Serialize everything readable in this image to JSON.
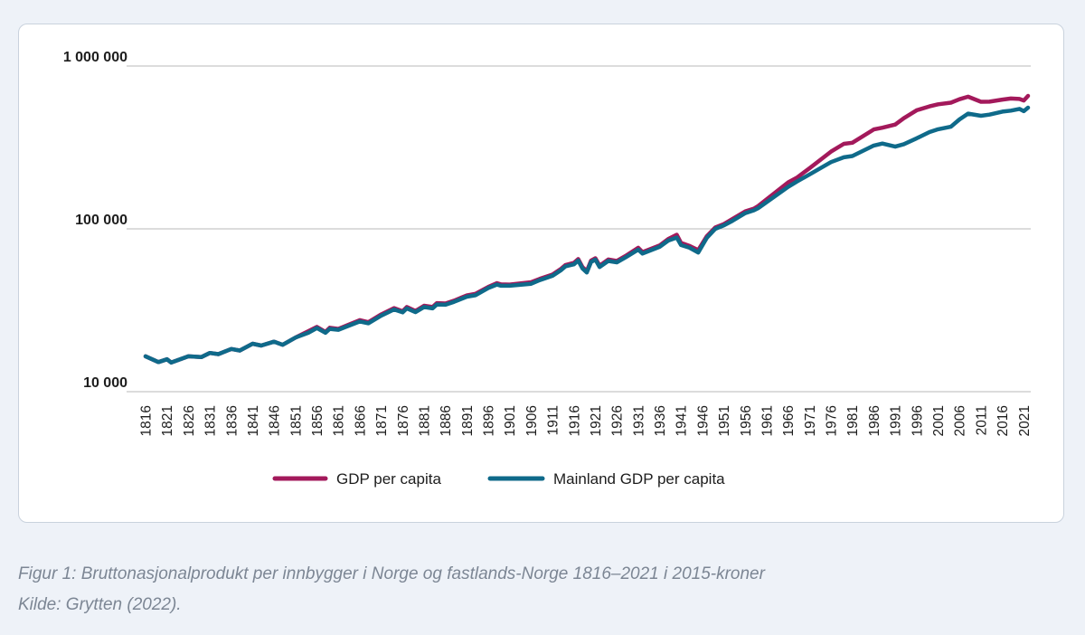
{
  "chart_data": {
    "type": "line",
    "title": "",
    "xlabel": "",
    "ylabel": "",
    "yscale": "log",
    "ylim": [
      10000,
      1000000
    ],
    "xlim": [
      1816,
      2022
    ],
    "grid": "horizontal",
    "legend_position": "bottom-center",
    "y_ticks": [
      {
        "value": 10000,
        "label": "10 000"
      },
      {
        "value": 100000,
        "label": "100 000"
      },
      {
        "value": 1000000,
        "label": "1 000 000"
      }
    ],
    "x_ticks": [
      "1816",
      "1821",
      "1826",
      "1831",
      "1836",
      "1841",
      "1846",
      "1851",
      "1856",
      "1861",
      "1866",
      "1871",
      "1876",
      "1881",
      "1886",
      "1891",
      "1896",
      "1901",
      "1906",
      "1911",
      "1916",
      "1921",
      "1926",
      "1931",
      "1936",
      "1941",
      "1946",
      "1951",
      "1956",
      "1961",
      "1966",
      "1971",
      "1976",
      "1981",
      "1986",
      "1991",
      "1996",
      "2001",
      "2006",
      "2011",
      "2016",
      "2021"
    ],
    "series": [
      {
        "name": "GDP per capita",
        "color": "#a3195b",
        "points": [
          [
            1816,
            16500
          ],
          [
            1819,
            15200
          ],
          [
            1821,
            15800
          ],
          [
            1822,
            15100
          ],
          [
            1826,
            16500
          ],
          [
            1829,
            16300
          ],
          [
            1831,
            17300
          ],
          [
            1833,
            17000
          ],
          [
            1836,
            18300
          ],
          [
            1838,
            17900
          ],
          [
            1841,
            19700
          ],
          [
            1843,
            19200
          ],
          [
            1846,
            20300
          ],
          [
            1848,
            19400
          ],
          [
            1851,
            21500
          ],
          [
            1854,
            23500
          ],
          [
            1856,
            25000
          ],
          [
            1858,
            23300
          ],
          [
            1859,
            24700
          ],
          [
            1861,
            24300
          ],
          [
            1866,
            27500
          ],
          [
            1868,
            26700
          ],
          [
            1871,
            29800
          ],
          [
            1874,
            32600
          ],
          [
            1876,
            31200
          ],
          [
            1877,
            33100
          ],
          [
            1879,
            31300
          ],
          [
            1881,
            33700
          ],
          [
            1883,
            33100
          ],
          [
            1884,
            35000
          ],
          [
            1886,
            34800
          ],
          [
            1888,
            36200
          ],
          [
            1891,
            39000
          ],
          [
            1893,
            39900
          ],
          [
            1896,
            44000
          ],
          [
            1898,
            46400
          ],
          [
            1899,
            45600
          ],
          [
            1901,
            45500
          ],
          [
            1906,
            47000
          ],
          [
            1908,
            49300
          ],
          [
            1911,
            52400
          ],
          [
            1913,
            56900
          ],
          [
            1914,
            59900
          ],
          [
            1916,
            61800
          ],
          [
            1917,
            65200
          ],
          [
            1918,
            58100
          ],
          [
            1919,
            55000
          ],
          [
            1920,
            63800
          ],
          [
            1921,
            66000
          ],
          [
            1922,
            59400
          ],
          [
            1924,
            64800
          ],
          [
            1926,
            63500
          ],
          [
            1928,
            68000
          ],
          [
            1931,
            76500
          ],
          [
            1932,
            72000
          ],
          [
            1936,
            79000
          ],
          [
            1938,
            86500
          ],
          [
            1940,
            92000
          ],
          [
            1941,
            82000
          ],
          [
            1943,
            78500
          ],
          [
            1945,
            74000
          ],
          [
            1947,
            90000
          ],
          [
            1949,
            102000
          ],
          [
            1951,
            107000
          ],
          [
            1953,
            115000
          ],
          [
            1956,
            128000
          ],
          [
            1958,
            133000
          ],
          [
            1959,
            138000
          ],
          [
            1961,
            152000
          ],
          [
            1966,
            193000
          ],
          [
            1968,
            206000
          ],
          [
            1971,
            236000
          ],
          [
            1976,
            298000
          ],
          [
            1979,
            333000
          ],
          [
            1981,
            338000
          ],
          [
            1986,
            408000
          ],
          [
            1988,
            418000
          ],
          [
            1991,
            437000
          ],
          [
            1993,
            478000
          ],
          [
            1996,
            535000
          ],
          [
            1999,
            565000
          ],
          [
            2001,
            582000
          ],
          [
            2004,
            596000
          ],
          [
            2006,
            625000
          ],
          [
            2008,
            648000
          ],
          [
            2011,
            603000
          ],
          [
            2013,
            604000
          ],
          [
            2016,
            622000
          ],
          [
            2018,
            632000
          ],
          [
            2020,
            628000
          ],
          [
            2021,
            614000
          ],
          [
            2022,
            656000
          ]
        ]
      },
      {
        "name": "Mainland GDP per capita",
        "color": "#0f6a8a",
        "points": [
          [
            1816,
            16500
          ],
          [
            1819,
            15200
          ],
          [
            1821,
            15800
          ],
          [
            1822,
            15100
          ],
          [
            1826,
            16500
          ],
          [
            1829,
            16300
          ],
          [
            1831,
            17300
          ],
          [
            1833,
            17000
          ],
          [
            1836,
            18300
          ],
          [
            1838,
            17900
          ],
          [
            1841,
            19700
          ],
          [
            1843,
            19200
          ],
          [
            1846,
            20300
          ],
          [
            1848,
            19400
          ],
          [
            1851,
            21500
          ],
          [
            1854,
            23000
          ],
          [
            1856,
            24600
          ],
          [
            1858,
            23000
          ],
          [
            1859,
            24300
          ],
          [
            1861,
            24000
          ],
          [
            1866,
            27000
          ],
          [
            1868,
            26300
          ],
          [
            1871,
            29300
          ],
          [
            1874,
            32000
          ],
          [
            1876,
            30700
          ],
          [
            1877,
            32500
          ],
          [
            1879,
            30800
          ],
          [
            1881,
            33100
          ],
          [
            1883,
            32500
          ],
          [
            1884,
            34300
          ],
          [
            1886,
            34200
          ],
          [
            1888,
            35600
          ],
          [
            1891,
            38300
          ],
          [
            1893,
            39100
          ],
          [
            1896,
            43300
          ],
          [
            1898,
            45500
          ],
          [
            1899,
            44700
          ],
          [
            1901,
            44700
          ],
          [
            1906,
            46000
          ],
          [
            1908,
            48400
          ],
          [
            1911,
            51500
          ],
          [
            1913,
            55800
          ],
          [
            1914,
            58800
          ],
          [
            1916,
            60600
          ],
          [
            1917,
            63900
          ],
          [
            1918,
            57000
          ],
          [
            1919,
            54000
          ],
          [
            1920,
            62600
          ],
          [
            1921,
            64700
          ],
          [
            1922,
            58300
          ],
          [
            1924,
            63500
          ],
          [
            1926,
            62300
          ],
          [
            1928,
            66700
          ],
          [
            1931,
            74500
          ],
          [
            1932,
            70500
          ],
          [
            1936,
            77500
          ],
          [
            1938,
            84700
          ],
          [
            1940,
            88500
          ],
          [
            1941,
            79500
          ],
          [
            1943,
            76500
          ],
          [
            1945,
            71500
          ],
          [
            1947,
            88000
          ],
          [
            1949,
            100000
          ],
          [
            1951,
            105000
          ],
          [
            1953,
            112000
          ],
          [
            1956,
            125000
          ],
          [
            1958,
            130000
          ],
          [
            1959,
            134000
          ],
          [
            1961,
            146000
          ],
          [
            1966,
            181000
          ],
          [
            1968,
            195000
          ],
          [
            1971,
            216000
          ],
          [
            1976,
            257000
          ],
          [
            1979,
            275000
          ],
          [
            1981,
            280000
          ],
          [
            1986,
            325000
          ],
          [
            1988,
            334000
          ],
          [
            1991,
            320000
          ],
          [
            1993,
            331000
          ],
          [
            1996,
            360000
          ],
          [
            1999,
            393000
          ],
          [
            2001,
            409000
          ],
          [
            2004,
            424000
          ],
          [
            2006,
            470000
          ],
          [
            2008,
            510000
          ],
          [
            2011,
            495000
          ],
          [
            2013,
            503000
          ],
          [
            2016,
            525000
          ],
          [
            2018,
            532000
          ],
          [
            2020,
            545000
          ],
          [
            2021,
            528000
          ],
          [
            2022,
            555000
          ]
        ]
      }
    ]
  },
  "caption": {
    "figure": "Figur 1: Bruttonasjonalprodukt per innbygger i Norge og fastlands-Norge 1816–2021 i 2015-kroner",
    "source": "Kilde: Grytten (2022)."
  }
}
